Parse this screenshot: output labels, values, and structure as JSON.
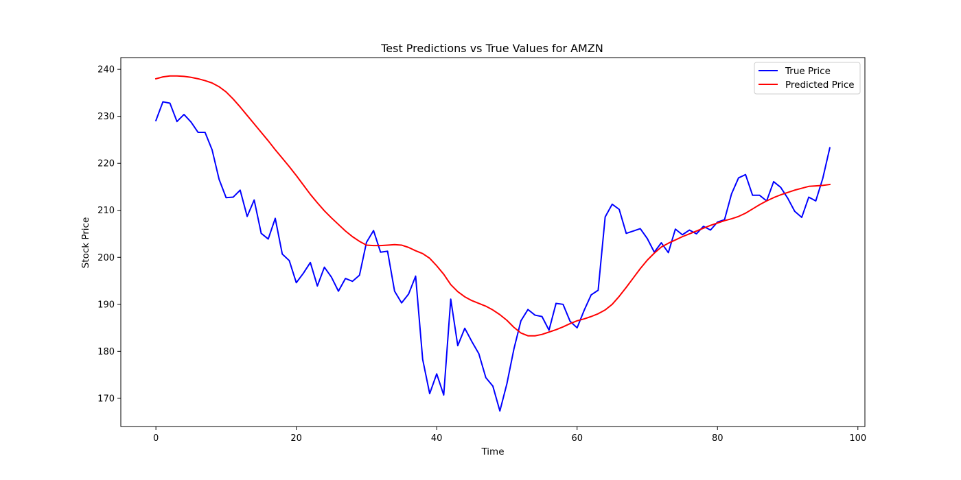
{
  "chart_data": {
    "type": "line",
    "title": "Test Predictions vs True Values for AMZN",
    "xlabel": "Time",
    "ylabel": "Stock Price",
    "xlim": [
      -5,
      101
    ],
    "ylim": [
      164,
      242.5
    ],
    "xticks": [
      0,
      20,
      40,
      60,
      80,
      100
    ],
    "yticks": [
      170,
      180,
      190,
      200,
      210,
      220,
      230,
      240
    ],
    "grid": false,
    "legend_position": "top-right",
    "series": [
      {
        "name": "True Price",
        "color": "#0000ff",
        "values": [
          229.1,
          233.1,
          232.8,
          228.9,
          230.4,
          228.8,
          226.6,
          226.6,
          222.9,
          216.6,
          212.7,
          212.8,
          214.3,
          208.7,
          212.2,
          205.1,
          203.9,
          208.3,
          200.7,
          199.3,
          194.6,
          196.6,
          198.9,
          193.9,
          197.9,
          195.8,
          192.8,
          195.5,
          194.9,
          196.2,
          203.2,
          205.7,
          201.1,
          201.3,
          192.8,
          190.3,
          192.2,
          196.0,
          178.3,
          171.0,
          175.2,
          170.7,
          191.1,
          181.2,
          184.9,
          182.1,
          179.5,
          174.4,
          172.6,
          167.3,
          173.1,
          180.5,
          186.5,
          188.9,
          187.7,
          187.4,
          184.5,
          190.2,
          190.0,
          186.4,
          185.0,
          188.7,
          192.0,
          193.0,
          208.6,
          211.3,
          210.2,
          205.1,
          205.6,
          206.1,
          204.0,
          201.1,
          203.1,
          201.0,
          206.0,
          204.8,
          205.8,
          205.0,
          206.6,
          205.8,
          207.5,
          208.0,
          213.5,
          216.9,
          217.6,
          213.2,
          213.2,
          212.0,
          216.1,
          214.9,
          212.6,
          209.8,
          208.5,
          212.8,
          212.0,
          216.8,
          223.3
        ]
      },
      {
        "name": "Predicted Price",
        "color": "#ff0000",
        "values": [
          238.0,
          238.4,
          238.6,
          238.6,
          238.5,
          238.3,
          238.0,
          237.6,
          237.1,
          236.3,
          235.2,
          233.7,
          232.0,
          230.2,
          228.4,
          226.6,
          224.8,
          222.9,
          221.1,
          219.3,
          217.4,
          215.4,
          213.4,
          211.6,
          209.9,
          208.4,
          207.0,
          205.6,
          204.4,
          203.4,
          202.6,
          202.5,
          202.5,
          202.6,
          202.7,
          202.6,
          202.1,
          201.4,
          200.8,
          199.8,
          198.2,
          196.4,
          194.2,
          192.7,
          191.6,
          190.8,
          190.2,
          189.6,
          188.8,
          187.8,
          186.6,
          185.1,
          183.9,
          183.3,
          183.3,
          183.6,
          184.1,
          184.6,
          185.2,
          185.9,
          186.5,
          186.9,
          187.4,
          188.0,
          188.8,
          190.0,
          191.7,
          193.6,
          195.6,
          197.6,
          199.4,
          200.9,
          202.2,
          203.0,
          203.7,
          204.4,
          205.0,
          205.6,
          206.2,
          206.8,
          207.3,
          207.8,
          208.2,
          208.7,
          209.4,
          210.3,
          211.2,
          212.0,
          212.7,
          213.3,
          213.8,
          214.3,
          214.7,
          215.1,
          215.2,
          215.3,
          215.5
        ]
      }
    ]
  }
}
